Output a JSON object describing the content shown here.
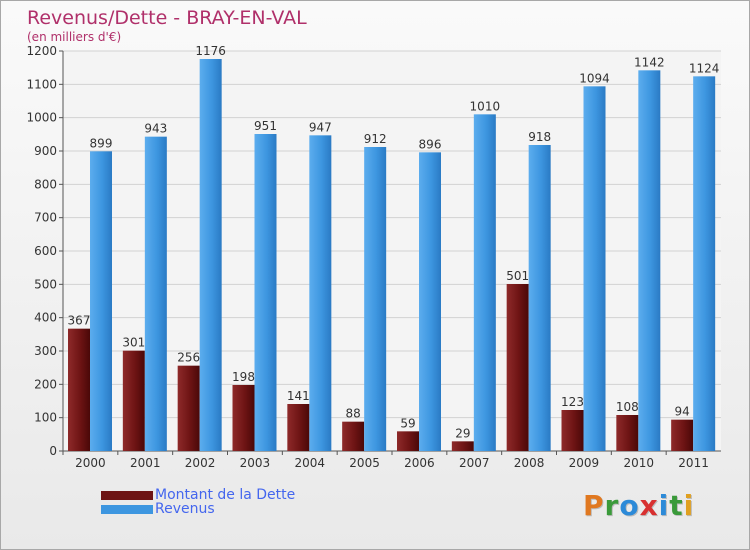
{
  "chart_data": {
    "type": "bar",
    "title": "Revenus/Dette - BRAY-EN-VAL",
    "subtitle": "(en milliers d'€)",
    "categories": [
      "2000",
      "2001",
      "2002",
      "2003",
      "2004",
      "2005",
      "2006",
      "2007",
      "2008",
      "2009",
      "2010",
      "2011"
    ],
    "series": [
      {
        "name": "Montant de la Dette",
        "color": "#7a1a1a",
        "values": [
          367,
          301,
          256,
          198,
          141,
          88,
          59,
          29,
          501,
          123,
          108,
          94
        ]
      },
      {
        "name": "Revenus",
        "color": "#3d96e0",
        "values": [
          899,
          943,
          1176,
          951,
          947,
          912,
          896,
          1010,
          918,
          1094,
          1142,
          1124
        ]
      }
    ],
    "ylim": [
      0,
      1200
    ],
    "yticks": [
      0,
      100,
      200,
      300,
      400,
      500,
      600,
      700,
      800,
      900,
      1000,
      1100,
      1200
    ],
    "grid": true,
    "legend": "bottom-left"
  },
  "logo": {
    "letters": [
      "P",
      "r",
      "o",
      "x",
      "i",
      "t",
      "i"
    ],
    "colors": [
      "#e07820",
      "#3a9a3a",
      "#2c8ad8",
      "#d83030",
      "#2c8ad8",
      "#3a9a3a",
      "#e0a020"
    ]
  }
}
